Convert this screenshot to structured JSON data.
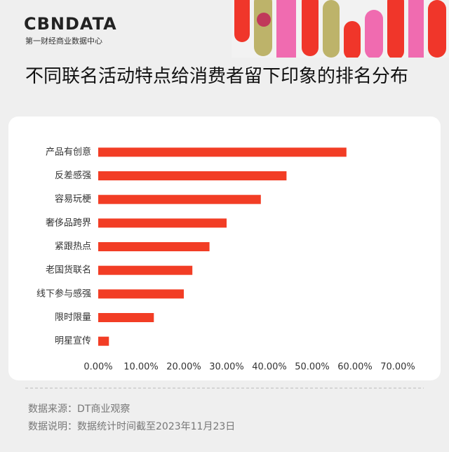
{
  "header": {
    "logo": "CBNDATA",
    "logo_subtitle": "第一财经商业数据中心"
  },
  "chart_data": {
    "type": "bar",
    "orientation": "horizontal",
    "title": "不同联名活动特点给消费者留下印象的排名分布",
    "categories": [
      "产品有创意",
      "反差感强",
      "容易玩梗",
      "奢侈品跨界",
      "紧跟热点",
      "老国货联名",
      "线下参与感强",
      "限时限量",
      "明星宣传"
    ],
    "values": [
      58,
      44,
      38,
      30,
      26,
      22,
      20,
      13,
      2.5
    ],
    "color": "#f23d25",
    "xlim": [
      0,
      70
    ],
    "xticks": [
      {
        "value": 0,
        "label": "0.00%"
      },
      {
        "value": 10,
        "label": "10.00%"
      },
      {
        "value": 20,
        "label": "20.00%"
      },
      {
        "value": 30,
        "label": "30.00%"
      },
      {
        "value": 40,
        "label": "40.00%"
      },
      {
        "value": 50,
        "label": "50.00%"
      },
      {
        "value": 60,
        "label": "60.00%"
      },
      {
        "value": 70,
        "label": "70.00%"
      }
    ],
    "grid": false
  },
  "footer": {
    "source": "数据来源：DT商业观察",
    "note": "数据说明：数据统计时间截至2023年11月23日"
  }
}
